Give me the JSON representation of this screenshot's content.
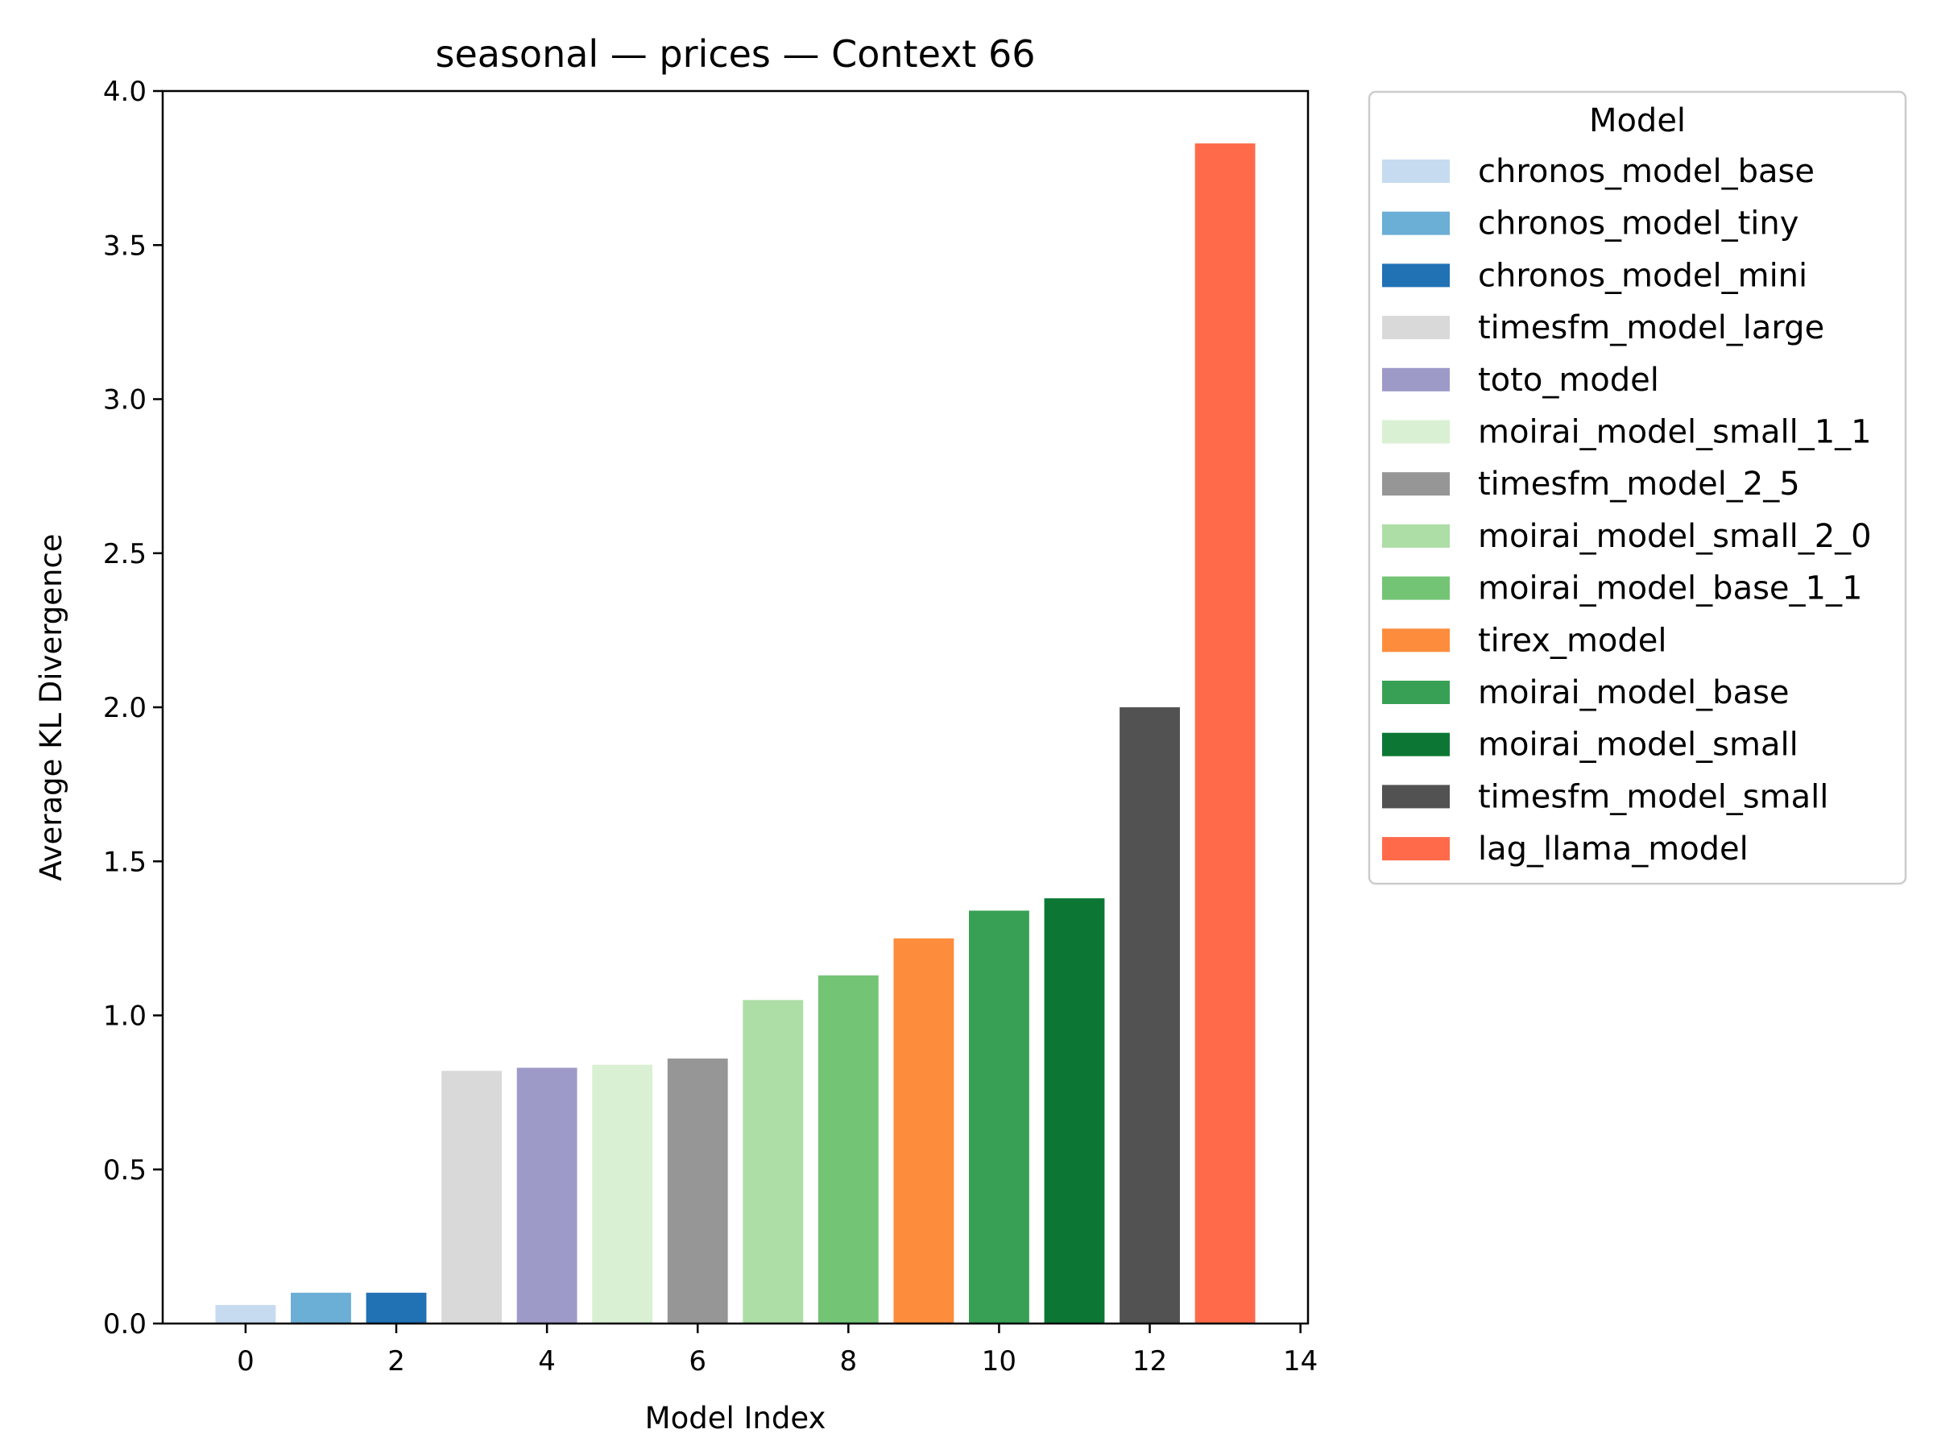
{
  "chart_data": {
    "type": "bar",
    "title": "seasonal — prices — Context 66",
    "xlabel": "Model Index",
    "ylabel": "Average KL Divergence",
    "xlim": [
      -1.1,
      14.1
    ],
    "ylim": [
      0,
      4.0
    ],
    "xticks": [
      "0",
      "2",
      "4",
      "6",
      "8",
      "10",
      "12",
      "14"
    ],
    "yticks": [
      "0.0",
      "0.5",
      "1.0",
      "1.5",
      "2.0",
      "2.5",
      "3.0",
      "3.5",
      "4.0"
    ],
    "grid": false,
    "legend_title": "Model",
    "legend_position": "outside-right",
    "bars": [
      {
        "index": 0,
        "label": "chronos_model_base",
        "value": 0.06,
        "color": "#c6dbef"
      },
      {
        "index": 1,
        "label": "chronos_model_tiny",
        "value": 0.1,
        "color": "#6baed6"
      },
      {
        "index": 2,
        "label": "chronos_model_mini",
        "value": 0.1,
        "color": "#2171b5"
      },
      {
        "index": 3,
        "label": "timesfm_model_large",
        "value": 0.82,
        "color": "#d9d9d9"
      },
      {
        "index": 4,
        "label": "toto_model",
        "value": 0.83,
        "color": "#9e9ac8"
      },
      {
        "index": 5,
        "label": "moirai_model_small_1_1",
        "value": 0.84,
        "color": "#d9f0d3"
      },
      {
        "index": 6,
        "label": "timesfm_model_2_5",
        "value": 0.86,
        "color": "#969696"
      },
      {
        "index": 7,
        "label": "moirai_model_small_2_0",
        "value": 1.05,
        "color": "#addea6"
      },
      {
        "index": 8,
        "label": "moirai_model_base_1_1",
        "value": 1.13,
        "color": "#74c476"
      },
      {
        "index": 9,
        "label": "tirex_model",
        "value": 1.25,
        "color": "#fd8d3c"
      },
      {
        "index": 10,
        "label": "moirai_model_base",
        "value": 1.34,
        "color": "#37a055"
      },
      {
        "index": 11,
        "label": "moirai_model_small",
        "value": 1.38,
        "color": "#0c7734"
      },
      {
        "index": 12,
        "label": "timesfm_model_small",
        "value": 2.0,
        "color": "#525252"
      },
      {
        "index": 13,
        "label": "lag_llama_model",
        "value": 3.83,
        "color": "#ff6a4b"
      }
    ]
  }
}
